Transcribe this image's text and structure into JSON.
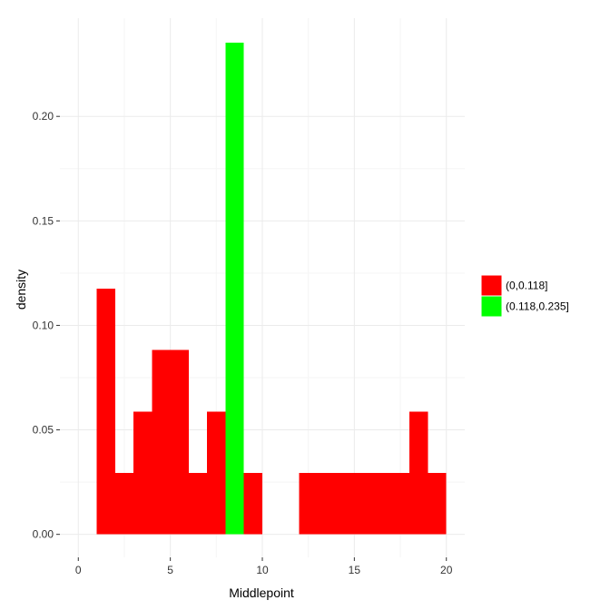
{
  "chart_data": {
    "type": "bar",
    "title": "",
    "xlabel": "Middlepoint",
    "ylabel": "density",
    "xlim": [
      -1,
      21
    ],
    "ylim": [
      -0.011,
      0.247
    ],
    "x_ticks": [
      0,
      5,
      10,
      15,
      20
    ],
    "x_tick_labels": [
      "0",
      "5",
      "10",
      "15",
      "20"
    ],
    "y_ticks": [
      0,
      0.05,
      0.1,
      0.15,
      0.2
    ],
    "y_tick_labels": [
      "0.00",
      "0.05",
      "0.10",
      "0.15",
      "0.20"
    ],
    "grid": true,
    "legend_position": "right",
    "colors": {
      "low": "#ff0000",
      "high": "#00ff00",
      "grid_major": "#ebebeb",
      "grid_minor": "#f5f5f5"
    },
    "series": [
      {
        "name": "(0,0.118]",
        "color_key": "low",
        "bars": [
          {
            "x0": 1,
            "x1": 2,
            "y": 0.1176
          },
          {
            "x0": 2,
            "x1": 3,
            "y": 0.0294
          },
          {
            "x0": 3,
            "x1": 4,
            "y": 0.0588
          },
          {
            "x0": 4,
            "x1": 5,
            "y": 0.0882
          },
          {
            "x0": 5,
            "x1": 6,
            "y": 0.0882
          },
          {
            "x0": 6,
            "x1": 7,
            "y": 0.0294
          },
          {
            "x0": 7,
            "x1": 8,
            "y": 0.0588
          },
          {
            "x0": 9,
            "x1": 10,
            "y": 0.0294
          },
          {
            "x0": 12,
            "x1": 13,
            "y": 0.0294
          },
          {
            "x0": 13,
            "x1": 14,
            "y": 0.0294
          },
          {
            "x0": 14,
            "x1": 15,
            "y": 0.0294
          },
          {
            "x0": 15,
            "x1": 16,
            "y": 0.0294
          },
          {
            "x0": 16,
            "x1": 17,
            "y": 0.0294
          },
          {
            "x0": 17,
            "x1": 18,
            "y": 0.0294
          },
          {
            "x0": 18,
            "x1": 19,
            "y": 0.0588
          },
          {
            "x0": 19,
            "x1": 20,
            "y": 0.0294
          }
        ]
      },
      {
        "name": "(0.118,0.235]",
        "color_key": "high",
        "bars": [
          {
            "x0": 8,
            "x1": 9,
            "y": 0.2353
          }
        ]
      }
    ]
  }
}
